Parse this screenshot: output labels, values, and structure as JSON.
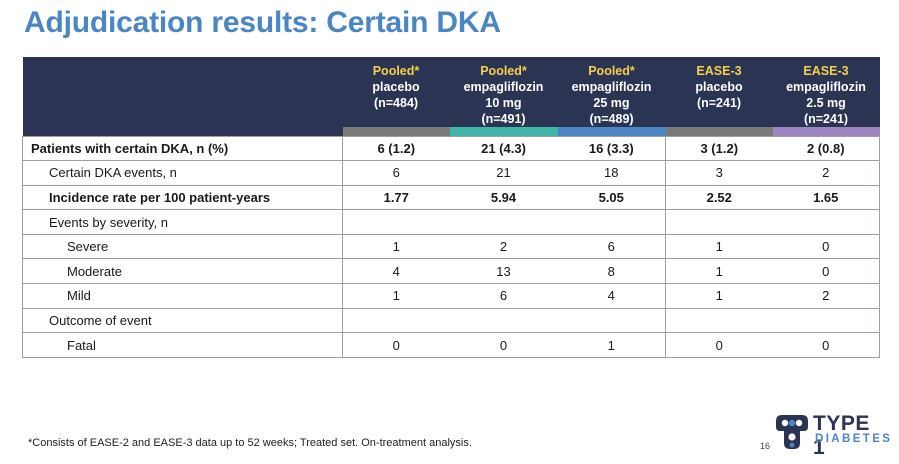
{
  "title": "Adjudication results: Certain DKA",
  "columns": [
    {
      "highlight": "Pooled*",
      "line1": "placebo",
      "line2": "(n=484)",
      "line3": "",
      "color": "#7a7a7a"
    },
    {
      "highlight": "Pooled*",
      "line1": "empagliflozin",
      "line2": "10 mg",
      "line3": "(n=491)",
      "color": "#3fb6a8"
    },
    {
      "highlight": "Pooled*",
      "line1": "empagliflozin",
      "line2": "25 mg",
      "line3": "(n=489)",
      "color": "#4a86c5"
    },
    {
      "highlight": "EASE-3",
      "line1": "placebo",
      "line2": "(n=241)",
      "line3": "",
      "color": "#7a7a7a"
    },
    {
      "highlight": "EASE-3",
      "line1": "empagliflozin",
      "line2": "2.5 mg",
      "line3": "(n=241)",
      "color": "#9b86c0"
    }
  ],
  "rows": [
    {
      "label": "Patients with certain DKA, n (%)",
      "values": [
        "6 (1.2)",
        "21 (4.3)",
        "16 (3.3)",
        "3 (1.2)",
        "2 (0.8)"
      ]
    },
    {
      "label": "Certain DKA events, n",
      "values": [
        "6",
        "21",
        "18",
        "3",
        "2"
      ]
    },
    {
      "label": "Incidence rate per 100 patient-years",
      "values": [
        "1.77",
        "5.94",
        "5.05",
        "2.52",
        "1.65"
      ]
    },
    {
      "label": "Events by severity, n",
      "values": [
        "",
        "",
        "",
        "",
        ""
      ]
    },
    {
      "label": "Severe",
      "values": [
        "1",
        "2",
        "6",
        "1",
        "0"
      ]
    },
    {
      "label": "Moderate",
      "values": [
        "4",
        "13",
        "8",
        "1",
        "0"
      ]
    },
    {
      "label": "Mild",
      "values": [
        "1",
        "6",
        "4",
        "1",
        "2"
      ]
    },
    {
      "label": "Outcome of event",
      "values": [
        "",
        "",
        "",
        "",
        ""
      ]
    },
    {
      "label": "Fatal",
      "values": [
        "0",
        "0",
        "1",
        "0",
        "0"
      ]
    }
  ],
  "footnote": "*Consists of EASE-2 and EASE-3 data up to 52 weeks; Treated set. On-treatment analysis.",
  "page_number": "16",
  "logo": {
    "line1": "TYPE 1",
    "line2": "DIABETES",
    "icon": "people-icon",
    "colors": {
      "dark": "#2b3553",
      "accent": "#4a86c5"
    }
  }
}
